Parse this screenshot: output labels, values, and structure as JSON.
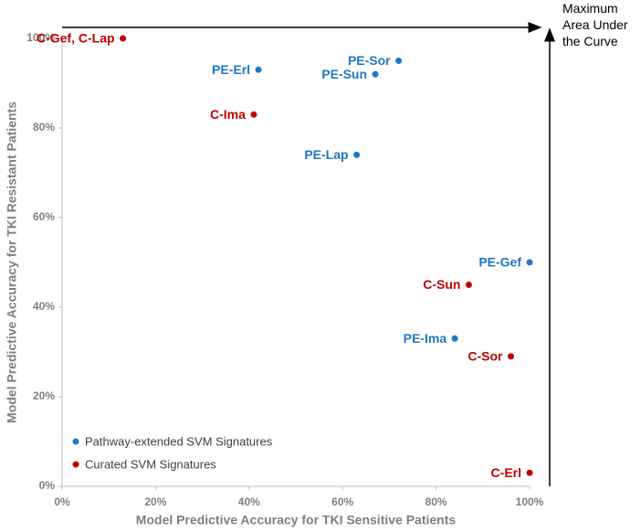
{
  "chart_data": {
    "type": "scatter",
    "x_label": "Model Predictive Accuracy for TKI Sensitive Patients",
    "y_label": "Model Predictive Accuracy for TKI Resistant Patients",
    "annotation": "Maximum Area Under the Curve",
    "xlim": [
      0,
      100
    ],
    "ylim": [
      0,
      100
    ],
    "xticks": [
      {
        "value": 0,
        "label": "0%"
      },
      {
        "value": 20,
        "label": "20%"
      },
      {
        "value": 40,
        "label": "40%"
      },
      {
        "value": 60,
        "label": "60%"
      },
      {
        "value": 80,
        "label": "80%"
      },
      {
        "value": 100,
        "label": "100%"
      }
    ],
    "yticks": [
      {
        "value": 0,
        "label": "0%"
      },
      {
        "value": 20,
        "label": "20%"
      },
      {
        "value": 40,
        "label": "40%"
      },
      {
        "value": 60,
        "label": "60%"
      },
      {
        "value": 80,
        "label": "80%"
      },
      {
        "value": 100,
        "label": "100%"
      }
    ],
    "legend": "lower left",
    "series": [
      {
        "name": "Pathway-extended SVM Signatures",
        "color": "#1f77c4",
        "labels": [
          "PE-Erl",
          "PE-Sor",
          "PE-Sun",
          "PE-Lap",
          "PE-Gef",
          "PE-Ima"
        ],
        "x": [
          42,
          72,
          67,
          63,
          100,
          84
        ],
        "values": [
          93,
          95,
          92,
          74,
          50,
          33
        ]
      },
      {
        "name": "Curated SVM Signatures",
        "color": "#c00000",
        "labels": [
          "C-Gef, C-Lap",
          "C-Ima",
          "C-Sun",
          "C-Sor",
          "C-Erl"
        ],
        "x": [
          13,
          41,
          87,
          96,
          100
        ],
        "values": [
          100,
          83,
          45,
          29,
          3
        ]
      }
    ]
  }
}
